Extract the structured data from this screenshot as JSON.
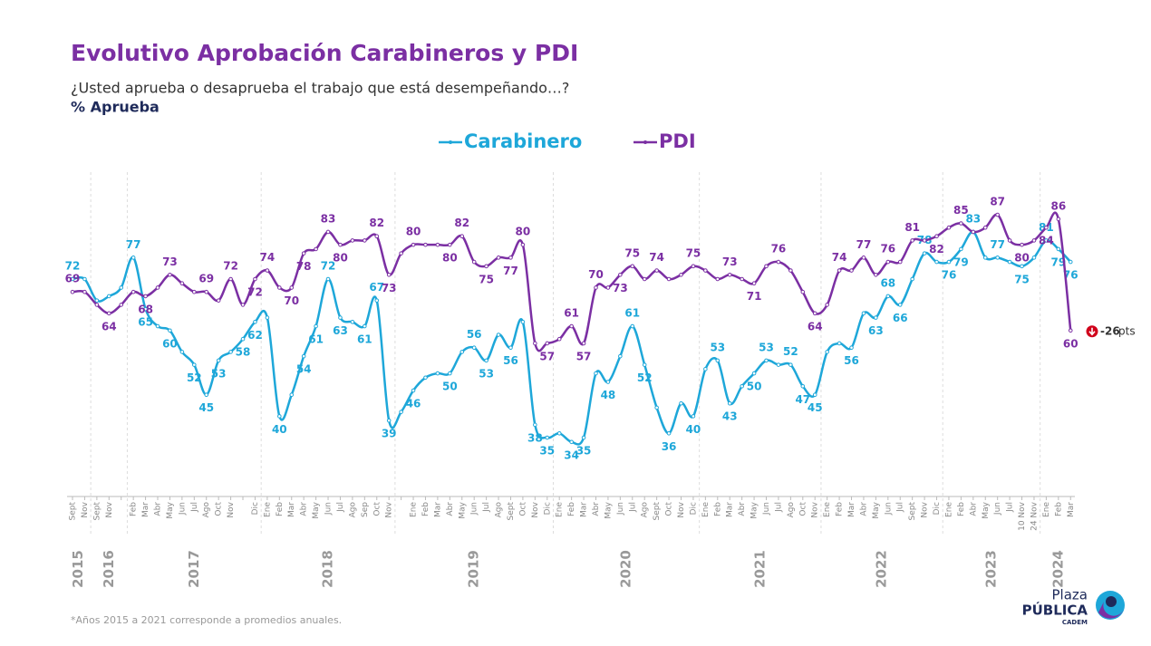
{
  "title": "Evolutivo Aprobación Carabineros y PDI",
  "subtitle": "¿Usted aprueba o desaprueba el trabajo que está desempeñando…?",
  "measure": "% Aprueba",
  "footnote": "*Años 2015 a 2021 corresponde a promedios anuales.",
  "logo": {
    "top": "Plaza",
    "main": "PÚBLICA",
    "bottom": "CADEM"
  },
  "chart_data": {
    "type": "line",
    "ylim": [
      20,
      95
    ],
    "categories": [
      "Sept",
      "Nov",
      "Sept",
      "Nov",
      null,
      "Feb",
      "Mar",
      "Abr",
      "May",
      "Jun",
      "Jul",
      "Ago",
      "Oct",
      "Nov",
      null,
      "Dic",
      "Ene",
      "Feb",
      "Mar",
      "Abr",
      "May",
      "Jun",
      "Jul",
      "Ago",
      "Sep",
      "Oct",
      "Nov",
      null,
      "Ene",
      "Feb",
      "Mar",
      "Abr",
      "May",
      "Jun",
      "Jul",
      "Ago",
      "Sept",
      "Oct",
      "Nov",
      "Dic",
      "Ene",
      "Feb",
      "Mar",
      "Abr",
      "May",
      "Jun",
      "Jul",
      "Ago",
      "Sept",
      "Oct",
      "Nov",
      "Dic",
      "Ene",
      "Feb",
      "Mar",
      "Abr",
      "May",
      "Jun",
      "Jul",
      "Ago",
      "Oct",
      "Nov",
      "Ene",
      "Feb",
      "Mar",
      "Abr",
      "May",
      "Jun",
      "Jul",
      "Sept",
      "Nov",
      "Dic",
      "Ene",
      "Feb",
      "Abr",
      "May",
      "Jun",
      "Jul",
      "10 Nov",
      "24 Nov",
      "Ene",
      "Feb",
      "Mar"
    ],
    "years": [
      "2015",
      "2016",
      "2017",
      "2018",
      "2019",
      "2020",
      "2021",
      "2022",
      "2023",
      "2024"
    ],
    "series": [
      {
        "name": "Carabinero",
        "color": "#1ea7d9",
        "values": [
          72,
          72,
          67,
          68,
          70,
          77,
          65,
          61,
          60,
          55,
          52,
          45,
          53,
          55,
          58,
          62,
          63,
          40,
          45,
          54,
          61,
          72,
          63,
          62,
          61,
          67,
          39,
          41,
          46,
          49,
          50,
          50,
          55,
          56,
          53,
          59,
          56,
          62,
          38,
          35,
          36,
          34,
          35,
          50,
          48,
          54,
          61,
          52,
          42,
          36,
          43,
          40,
          51,
          53,
          43,
          47,
          50,
          53,
          52,
          52,
          47,
          45,
          55,
          57,
          56,
          64,
          63,
          68,
          66,
          72,
          78,
          76,
          76,
          79,
          83,
          77,
          77,
          76,
          75,
          77,
          81,
          79,
          76
        ],
        "value_labels": [
          "72",
          null,
          null,
          null,
          null,
          "77",
          "65",
          null,
          "60",
          null,
          "52",
          "45",
          "53",
          null,
          "58",
          "62",
          null,
          "40",
          null,
          "54",
          "61",
          "72",
          "63",
          null,
          "61",
          "67",
          "39",
          null,
          "46",
          null,
          null,
          "50",
          null,
          "56",
          "53",
          null,
          "56",
          null,
          "38",
          "35",
          null,
          "34",
          "35",
          null,
          "48",
          null,
          "61",
          "52",
          null,
          "36",
          null,
          "40",
          null,
          "53",
          "43",
          null,
          "50",
          "53",
          null,
          "52",
          "47",
          "45",
          null,
          null,
          "56",
          null,
          "63",
          "68",
          "66",
          null,
          "78",
          null,
          "76",
          "79",
          "83",
          null,
          "77",
          null,
          "75",
          null,
          "81",
          "79",
          "76"
        ]
      },
      {
        "name": "PDI",
        "color": "#7b2fa3",
        "values": [
          69,
          69,
          66,
          64,
          66,
          69,
          68,
          70,
          73,
          71,
          69,
          69,
          67,
          72,
          66,
          72,
          74,
          70,
          70,
          78,
          79,
          83,
          80,
          81,
          81,
          82,
          73,
          78,
          80,
          80,
          80,
          80,
          82,
          76,
          75,
          77,
          77,
          80,
          57,
          57,
          58,
          61,
          57,
          70,
          70,
          73,
          75,
          72,
          74,
          72,
          73,
          75,
          74,
          72,
          73,
          72,
          71,
          75,
          76,
          74,
          69,
          64,
          66,
          74,
          74,
          77,
          73,
          76,
          76,
          81,
          81,
          82,
          84,
          85,
          83,
          84,
          87,
          81,
          80,
          81,
          84,
          86,
          60
        ],
        "value_labels": [
          "69",
          null,
          null,
          "64",
          null,
          null,
          "68",
          null,
          "73",
          null,
          null,
          "69",
          null,
          "72",
          null,
          "72",
          "74",
          null,
          "70",
          "78",
          null,
          "83",
          "80",
          null,
          null,
          "82",
          "73",
          null,
          "80",
          null,
          null,
          "80",
          "82",
          null,
          "75",
          null,
          "77",
          "80",
          null,
          "57",
          null,
          "61",
          "57",
          "70",
          null,
          "73",
          "75",
          null,
          "74",
          null,
          null,
          "75",
          null,
          null,
          "73",
          null,
          "71",
          null,
          "76",
          null,
          null,
          "64",
          null,
          "74",
          null,
          "77",
          null,
          "76",
          null,
          "81",
          null,
          "82",
          null,
          "85",
          null,
          null,
          "87",
          null,
          "80",
          null,
          "84",
          "86",
          "60"
        ]
      }
    ],
    "annotation": {
      "change": "-26",
      "unit": "pts"
    }
  }
}
